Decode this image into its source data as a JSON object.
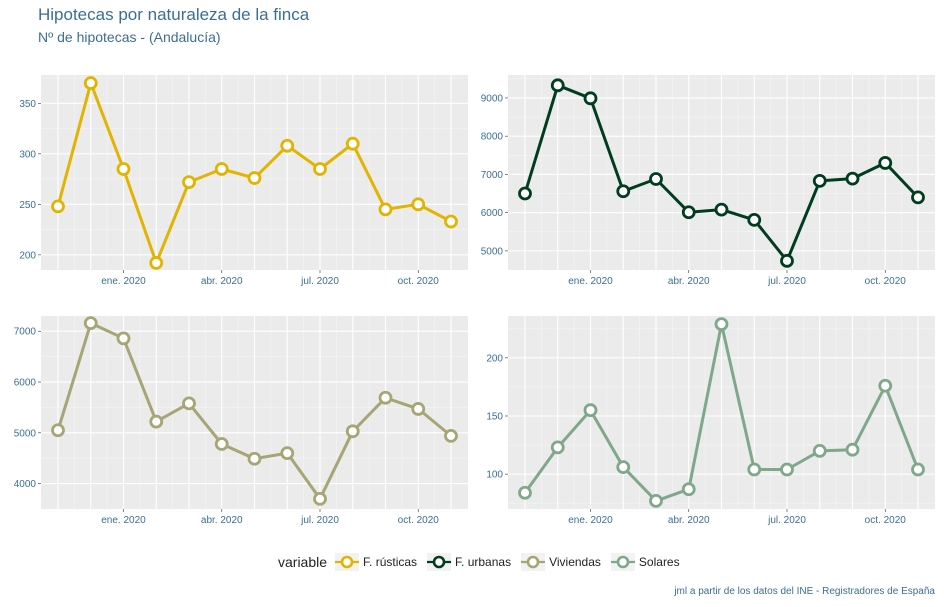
{
  "title": "Hipotecas por naturaleza de la finca",
  "subtitle": "Nº de hipotecas - (Andalucía)",
  "caption": "jml a partir de los datos del INE - Registradores de España",
  "legend": {
    "title": "variable",
    "items": [
      {
        "label": "F. rústicas",
        "color": "#e0b400"
      },
      {
        "label": "F. urbanas",
        "color": "#003d1f"
      },
      {
        "label": "Viviendas",
        "color": "#a5a575"
      },
      {
        "label": "Solares",
        "color": "#7fa88a"
      }
    ]
  },
  "chart_data": [
    {
      "type": "line",
      "series_name": "F. rústicas",
      "color": "#e0b400",
      "x_months": [
        "nov. 2019",
        "dic. 2019",
        "ene. 2020",
        "feb. 2020",
        "mar. 2020",
        "abr. 2020",
        "may. 2020",
        "jun. 2020",
        "jul. 2020",
        "ago. 2020",
        "sep. 2020",
        "oct. 2020",
        "nov. 2020"
      ],
      "values": [
        248,
        370,
        285,
        192,
        272,
        285,
        276,
        308,
        285,
        310,
        245,
        250,
        233
      ],
      "ylim": [
        185,
        378
      ],
      "yticks": [
        200,
        250,
        300,
        350
      ],
      "xticks": [
        "ene. 2020",
        "abr. 2020",
        "jul. 2020",
        "oct. 2020"
      ]
    },
    {
      "type": "line",
      "series_name": "F. urbanas",
      "color": "#003d1f",
      "x_months": [
        "nov. 2019",
        "dic. 2019",
        "ene. 2020",
        "feb. 2020",
        "mar. 2020",
        "abr. 2020",
        "may. 2020",
        "jun. 2020",
        "jul. 2020",
        "ago. 2020",
        "sep. 2020",
        "oct. 2020",
        "nov. 2020"
      ],
      "values": [
        6500,
        9330,
        8990,
        6560,
        6880,
        6010,
        6080,
        5810,
        4740,
        6830,
        6890,
        7300,
        6400
      ],
      "ylim": [
        4500,
        9600
      ],
      "yticks": [
        5000,
        6000,
        7000,
        8000,
        9000
      ],
      "xticks": [
        "ene. 2020",
        "abr. 2020",
        "jul. 2020",
        "oct. 2020"
      ]
    },
    {
      "type": "line",
      "series_name": "Viviendas",
      "color": "#a5a575",
      "x_months": [
        "nov. 2019",
        "dic. 2019",
        "ene. 2020",
        "feb. 2020",
        "mar. 2020",
        "abr. 2020",
        "may. 2020",
        "jun. 2020",
        "jul. 2020",
        "ago. 2020",
        "sep. 2020",
        "oct. 2020",
        "nov. 2020"
      ],
      "values": [
        5050,
        7160,
        6860,
        5220,
        5580,
        4780,
        4490,
        4600,
        3700,
        5030,
        5690,
        5470,
        4940
      ],
      "ylim": [
        3500,
        7300
      ],
      "yticks": [
        4000,
        5000,
        6000,
        7000
      ],
      "xticks": [
        "ene. 2020",
        "abr. 2020",
        "jul. 2020",
        "oct. 2020"
      ]
    },
    {
      "type": "line",
      "series_name": "Solares",
      "color": "#7fa88a",
      "x_months": [
        "nov. 2019",
        "dic. 2019",
        "ene. 2020",
        "feb. 2020",
        "mar. 2020",
        "abr. 2020",
        "may. 2020",
        "jun. 2020",
        "jul. 2020",
        "ago. 2020",
        "sep. 2020",
        "oct. 2020",
        "nov. 2020"
      ],
      "values": [
        84,
        123,
        155,
        106,
        77,
        87,
        229,
        104,
        104,
        120,
        121,
        176,
        104
      ],
      "ylim": [
        70,
        236
      ],
      "yticks": [
        100,
        150,
        200
      ],
      "xticks": [
        "ene. 2020",
        "abr. 2020",
        "jul. 2020",
        "oct. 2020"
      ]
    }
  ]
}
